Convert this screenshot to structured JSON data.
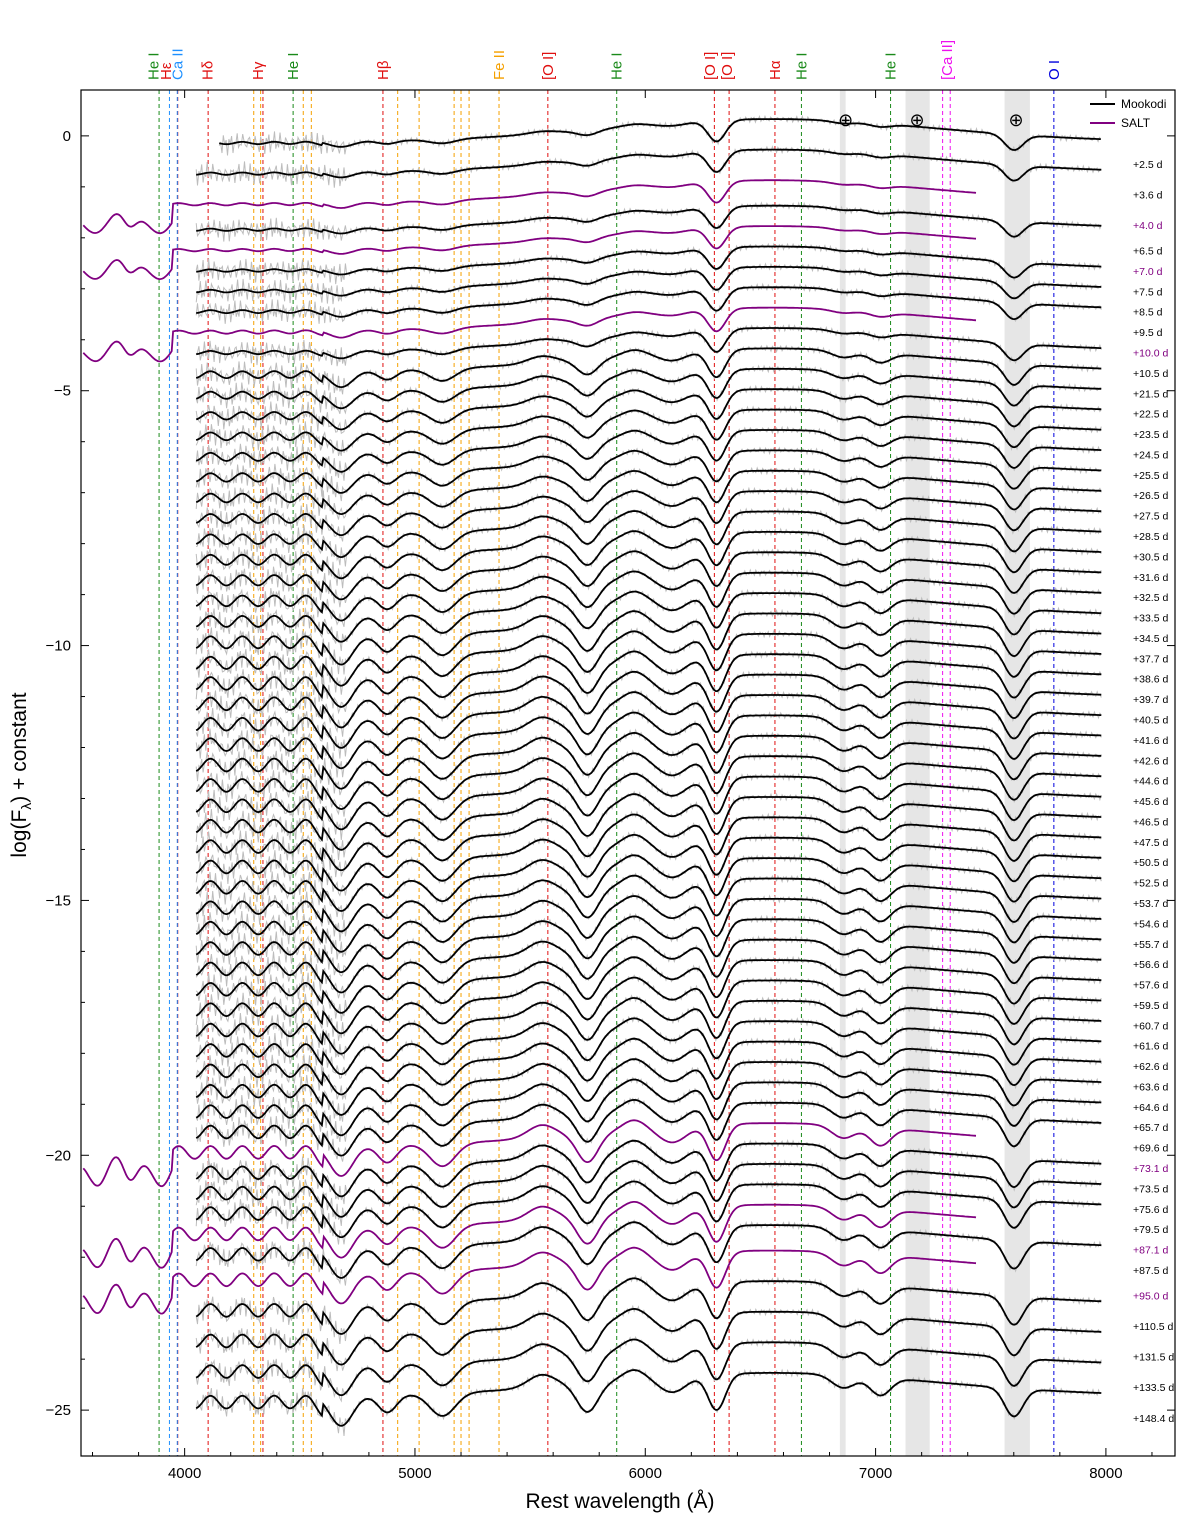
{
  "chart_data": {
    "type": "line",
    "title": "",
    "xlabel": "Rest wavelength (Å)",
    "ylabel_parts": [
      "log(F",
      "λ",
      ") + constant"
    ],
    "xlim": [
      3550,
      8300
    ],
    "ylim": [
      -25.9,
      0.9
    ],
    "xticks": [
      4000,
      5000,
      6000,
      7000,
      8000
    ],
    "xtick_labels": [
      "4000",
      "5000",
      "6000",
      "7000",
      "8000"
    ],
    "yticks": [
      0,
      -5,
      -10,
      -15,
      -20,
      -25
    ],
    "ytick_labels": [
      "0",
      "−5",
      "−10",
      "−15",
      "−20",
      "−25"
    ],
    "legend": [
      {
        "name": "Mookodi",
        "color": "#000000"
      },
      {
        "name": "SALT",
        "color": "#800080"
      }
    ],
    "colors": {
      "mookodi": "#000000",
      "salt": "#800080",
      "raw": "#bdbdbd",
      "telluric_band": "#e6e6e6"
    },
    "telluric_symbol": "⊕",
    "telluric_bands": [
      [
        6845,
        6870
      ],
      [
        7130,
        7235
      ],
      [
        7560,
        7670
      ]
    ],
    "telluric_symbol_x": [
      6870,
      7180,
      7610
    ],
    "line_markers": [
      {
        "label": "He I",
        "x": 3889,
        "color": "#1a8a1a"
      },
      {
        "label": "Hε",
        "x": 3970,
        "color": "#e01010"
      },
      {
        "label": "Ca II",
        "x": 3934,
        "color": "#1e90ff"
      },
      {
        "label": "Ca II",
        "x": 3968,
        "color": "#1e90ff"
      },
      {
        "label": "Hδ",
        "x": 4102,
        "color": "#e01010"
      },
      {
        "label": "Hγ",
        "x": 4340,
        "color": "#e01010"
      },
      {
        "label": "He I",
        "x": 4471,
        "color": "#1a8a1a"
      },
      {
        "label": "Hβ",
        "x": 4861,
        "color": "#e01010"
      },
      {
        "label": "Fe II",
        "x": 5018,
        "color": "#f5a000"
      },
      {
        "label": "[O I]",
        "x": 5577,
        "color": "#e01010"
      },
      {
        "label": "He I",
        "x": 5876,
        "color": "#1a8a1a"
      },
      {
        "label": "[O I]",
        "x": 6300,
        "color": "#e01010"
      },
      {
        "label": "[O I]",
        "x": 6364,
        "color": "#e01010"
      },
      {
        "label": "Hα",
        "x": 6563,
        "color": "#e01010"
      },
      {
        "label": "He I",
        "x": 6678,
        "color": "#1a8a1a"
      },
      {
        "label": "He I",
        "x": 7065,
        "color": "#1a8a1a"
      },
      {
        "label": "[Ca II]",
        "x": 7291,
        "color": "#ee10ee"
      },
      {
        "label": "[Ca II]",
        "x": 7324,
        "color": "#ee10ee"
      },
      {
        "label": "O I",
        "x": 7774,
        "color": "#0000dd"
      }
    ],
    "fe_lines": [
      4300,
      4330,
      4515,
      4550,
      4925,
      5170,
      5200,
      5235,
      5365
    ],
    "fe_color": "#f5a000",
    "top_labels": [
      {
        "text": "He I",
        "x": 3865,
        "color": "#1a8a1a"
      },
      {
        "text": "Hε",
        "x": 3918,
        "color": "#e01010"
      },
      {
        "text": "Ca II",
        "x": 3970,
        "color": "#1e90ff"
      },
      {
        "text": "Hδ",
        "x": 4100,
        "color": "#e01010"
      },
      {
        "text": "Hγ",
        "x": 4318,
        "color": "#e01010"
      },
      {
        "text": "He I",
        "x": 4470,
        "color": "#1a8a1a"
      },
      {
        "text": "Hβ",
        "x": 4861,
        "color": "#e01010"
      },
      {
        "text": "Fe II",
        "x": 5365,
        "color": "#f5a000"
      },
      {
        "text": "[O I]",
        "x": 5577,
        "color": "#e01010"
      },
      {
        "text": "He I",
        "x": 5876,
        "color": "#1a8a1a"
      },
      {
        "text": "[O I]",
        "x": 6280,
        "color": "#e01010"
      },
      {
        "text": "[O I]",
        "x": 6355,
        "color": "#e01010"
      },
      {
        "text": "Hα",
        "x": 6563,
        "color": "#e01010"
      },
      {
        "text": "He I",
        "x": 6678,
        "color": "#1a8a1a"
      },
      {
        "text": "He I",
        "x": 7065,
        "color": "#1a8a1a"
      },
      {
        "text": "[Ca II]",
        "x": 7310,
        "color": "#ee10ee"
      },
      {
        "text": "O I",
        "x": 7774,
        "color": "#0000dd"
      }
    ],
    "spectra": [
      {
        "label": "+2.5 d",
        "offset": 0.0,
        "instrument": "Mookodi",
        "xmin": 4150,
        "xmax": 7980
      },
      {
        "label": "+3.6 d",
        "offset": -0.6,
        "instrument": "Mookodi",
        "xmin": 4050,
        "xmax": 7980
      },
      {
        "label": "+4.0 d",
        "offset": -1.2,
        "instrument": "SALT",
        "xmin": 3560,
        "xmax": 7440
      },
      {
        "label": "+6.5 d",
        "offset": -1.7,
        "instrument": "Mookodi",
        "xmin": 4050,
        "xmax": 7980
      },
      {
        "label": "+7.0 d",
        "offset": -2.1,
        "instrument": "SALT",
        "xmin": 3560,
        "xmax": 7440
      },
      {
        "label": "+7.5 d",
        "offset": -2.5,
        "instrument": "Mookodi",
        "xmin": 4050,
        "xmax": 7980
      },
      {
        "label": "+8.5 d",
        "offset": -2.9,
        "instrument": "Mookodi",
        "xmin": 4050,
        "xmax": 7980
      },
      {
        "label": "+9.5 d",
        "offset": -3.3,
        "instrument": "Mookodi",
        "xmin": 4050,
        "xmax": 7980
      },
      {
        "label": "+10.0 d",
        "offset": -3.7,
        "instrument": "SALT",
        "xmin": 3560,
        "xmax": 7440
      },
      {
        "label": "+10.5 d",
        "offset": -4.1,
        "instrument": "Mookodi",
        "xmin": 4050,
        "xmax": 7980
      },
      {
        "label": "+21.5 d",
        "offset": -4.5,
        "instrument": "Mookodi",
        "xmin": 4050,
        "xmax": 7980
      },
      {
        "label": "+22.5 d",
        "offset": -4.9,
        "instrument": "Mookodi",
        "xmin": 4050,
        "xmax": 7980
      },
      {
        "label": "+23.5 d",
        "offset": -5.3,
        "instrument": "Mookodi",
        "xmin": 4050,
        "xmax": 7980
      },
      {
        "label": "+24.5 d",
        "offset": -5.7,
        "instrument": "Mookodi",
        "xmin": 4050,
        "xmax": 7980
      },
      {
        "label": "+25.5 d",
        "offset": -6.1,
        "instrument": "Mookodi",
        "xmin": 4050,
        "xmax": 7980
      },
      {
        "label": "+26.5 d",
        "offset": -6.5,
        "instrument": "Mookodi",
        "xmin": 4050,
        "xmax": 7980
      },
      {
        "label": "+27.5 d",
        "offset": -6.9,
        "instrument": "Mookodi",
        "xmin": 4050,
        "xmax": 7980
      },
      {
        "label": "+28.5 d",
        "offset": -7.3,
        "instrument": "Mookodi",
        "xmin": 4050,
        "xmax": 7980
      },
      {
        "label": "+30.5 d",
        "offset": -7.7,
        "instrument": "Mookodi",
        "xmin": 4050,
        "xmax": 7980
      },
      {
        "label": "+31.6 d",
        "offset": -8.1,
        "instrument": "Mookodi",
        "xmin": 4050,
        "xmax": 7980
      },
      {
        "label": "+32.5 d",
        "offset": -8.5,
        "instrument": "Mookodi",
        "xmin": 4050,
        "xmax": 7980
      },
      {
        "label": "+33.5 d",
        "offset": -8.9,
        "instrument": "Mookodi",
        "xmin": 4050,
        "xmax": 7980
      },
      {
        "label": "+34.5 d",
        "offset": -9.3,
        "instrument": "Mookodi",
        "xmin": 4050,
        "xmax": 7980
      },
      {
        "label": "+37.7 d",
        "offset": -9.7,
        "instrument": "Mookodi",
        "xmin": 4050,
        "xmax": 7980
      },
      {
        "label": "+38.6 d",
        "offset": -10.1,
        "instrument": "Mookodi",
        "xmin": 4050,
        "xmax": 7980
      },
      {
        "label": "+39.7 d",
        "offset": -10.5,
        "instrument": "Mookodi",
        "xmin": 4050,
        "xmax": 7980
      },
      {
        "label": "+40.5 d",
        "offset": -10.9,
        "instrument": "Mookodi",
        "xmin": 4050,
        "xmax": 7980
      },
      {
        "label": "+41.6 d",
        "offset": -11.3,
        "instrument": "Mookodi",
        "xmin": 4050,
        "xmax": 7980
      },
      {
        "label": "+42.6 d",
        "offset": -11.7,
        "instrument": "Mookodi",
        "xmin": 4050,
        "xmax": 7980
      },
      {
        "label": "+44.6 d",
        "offset": -12.1,
        "instrument": "Mookodi",
        "xmin": 4050,
        "xmax": 7980
      },
      {
        "label": "+45.6 d",
        "offset": -12.5,
        "instrument": "Mookodi",
        "xmin": 4050,
        "xmax": 7980
      },
      {
        "label": "+46.5 d",
        "offset": -12.9,
        "instrument": "Mookodi",
        "xmin": 4050,
        "xmax": 7980
      },
      {
        "label": "+47.5 d",
        "offset": -13.3,
        "instrument": "Mookodi",
        "xmin": 4050,
        "xmax": 7980
      },
      {
        "label": "+50.5 d",
        "offset": -13.7,
        "instrument": "Mookodi",
        "xmin": 4050,
        "xmax": 7980
      },
      {
        "label": "+52.5 d",
        "offset": -14.1,
        "instrument": "Mookodi",
        "xmin": 4050,
        "xmax": 7980
      },
      {
        "label": "+53.7 d",
        "offset": -14.5,
        "instrument": "Mookodi",
        "xmin": 4050,
        "xmax": 7980
      },
      {
        "label": "+54.6 d",
        "offset": -14.9,
        "instrument": "Mookodi",
        "xmin": 4050,
        "xmax": 7980
      },
      {
        "label": "+55.7 d",
        "offset": -15.3,
        "instrument": "Mookodi",
        "xmin": 4050,
        "xmax": 7980
      },
      {
        "label": "+56.6 d",
        "offset": -15.7,
        "instrument": "Mookodi",
        "xmin": 4050,
        "xmax": 7980
      },
      {
        "label": "+57.6 d",
        "offset": -16.1,
        "instrument": "Mookodi",
        "xmin": 4050,
        "xmax": 7980
      },
      {
        "label": "+59.5 d",
        "offset": -16.5,
        "instrument": "Mookodi",
        "xmin": 4050,
        "xmax": 7980
      },
      {
        "label": "+60.7 d",
        "offset": -16.9,
        "instrument": "Mookodi",
        "xmin": 4050,
        "xmax": 7980
      },
      {
        "label": "+61.6 d",
        "offset": -17.3,
        "instrument": "Mookodi",
        "xmin": 4050,
        "xmax": 7980
      },
      {
        "label": "+62.6 d",
        "offset": -17.7,
        "instrument": "Mookodi",
        "xmin": 4050,
        "xmax": 7980
      },
      {
        "label": "+63.6 d",
        "offset": -18.1,
        "instrument": "Mookodi",
        "xmin": 4050,
        "xmax": 7980
      },
      {
        "label": "+64.6 d",
        "offset": -18.5,
        "instrument": "Mookodi",
        "xmin": 4050,
        "xmax": 7980
      },
      {
        "label": "+65.7 d",
        "offset": -18.9,
        "instrument": "Mookodi",
        "xmin": 4050,
        "xmax": 7980
      },
      {
        "label": "+69.6 d",
        "offset": -19.3,
        "instrument": "Mookodi",
        "xmin": 4050,
        "xmax": 7980
      },
      {
        "label": "+73.1 d",
        "offset": -19.7,
        "instrument": "SALT",
        "xmin": 3560,
        "xmax": 7440
      },
      {
        "label": "+73.5 d",
        "offset": -20.1,
        "instrument": "Mookodi",
        "xmin": 4050,
        "xmax": 7980
      },
      {
        "label": "+75.6 d",
        "offset": -20.5,
        "instrument": "Mookodi",
        "xmin": 4050,
        "xmax": 7980
      },
      {
        "label": "+79.5 d",
        "offset": -20.9,
        "instrument": "Mookodi",
        "xmin": 4050,
        "xmax": 7980
      },
      {
        "label": "+87.1 d",
        "offset": -21.3,
        "instrument": "SALT",
        "xmin": 3560,
        "xmax": 7440
      },
      {
        "label": "+87.5 d",
        "offset": -21.7,
        "instrument": "Mookodi",
        "xmin": 4050,
        "xmax": 7980
      },
      {
        "label": "+95.0 d",
        "offset": -22.2,
        "instrument": "SALT",
        "xmin": 3560,
        "xmax": 7440
      },
      {
        "label": "+110.5 d",
        "offset": -22.8,
        "instrument": "Mookodi",
        "xmin": 4050,
        "xmax": 7980
      },
      {
        "label": "+131.5 d",
        "offset": -23.4,
        "instrument": "Mookodi",
        "xmin": 4050,
        "xmax": 7980
      },
      {
        "label": "+133.5 d",
        "offset": -24.0,
        "instrument": "Mookodi",
        "xmin": 4050,
        "xmax": 7980
      },
      {
        "label": "+148.4 d",
        "offset": -24.6,
        "instrument": "Mookodi",
        "xmin": 4050,
        "xmax": 7980
      }
    ]
  }
}
